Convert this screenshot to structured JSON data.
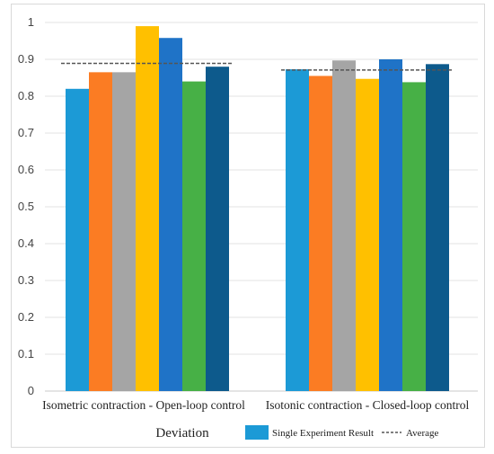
{
  "chart_data": {
    "type": "bar",
    "categories": [
      "Isometric contraction - Open-loop control",
      "Isotonic contraction - Closed-loop control"
    ],
    "series": [
      {
        "values": [
          0.82,
          0.873
        ]
      },
      {
        "values": [
          0.865,
          0.855
        ]
      },
      {
        "values": [
          0.865,
          0.897
        ]
      },
      {
        "values": [
          0.99,
          0.847
        ]
      },
      {
        "values": [
          0.958,
          0.9
        ]
      },
      {
        "values": [
          0.84,
          0.838
        ]
      },
      {
        "values": [
          0.88,
          0.887
        ]
      }
    ],
    "averages": [
      0.889,
      0.871
    ],
    "xlabel": "Deviation",
    "ylim": [
      0,
      1
    ],
    "yticks": [
      0,
      0.1,
      0.2,
      0.3,
      0.4,
      0.5,
      0.6,
      0.7,
      0.8,
      0.9,
      1
    ],
    "ytick_labels": [
      "0",
      "0.1",
      "0.2",
      "0.3",
      "0.4",
      "0.5",
      "0.6",
      "0.7",
      "0.8",
      "0.9",
      "1"
    ],
    "grid": true,
    "legend_position": "bottom-right",
    "legend": [
      {
        "label": "Single Experiment Result",
        "kind": "bar",
        "color": "#1c9ad6"
      },
      {
        "label": "Average",
        "kind": "dashed-line",
        "color": "#555555"
      }
    ],
    "colors": [
      "#1c9ad6",
      "#fb7c23",
      "#a5a5a5",
      "#ffc000",
      "#1f73c7",
      "#47b046",
      "#0d5a8c"
    ],
    "average_line_color": "#555555"
  }
}
